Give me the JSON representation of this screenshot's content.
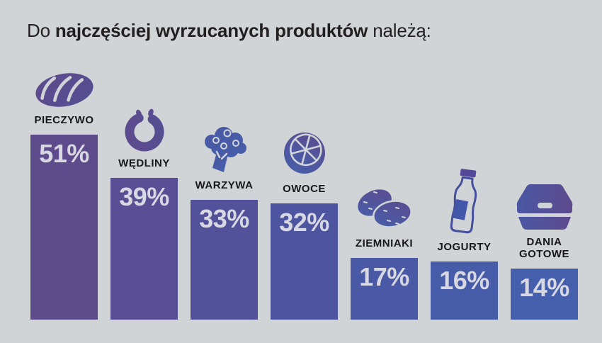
{
  "title_parts": {
    "lead": "Do ",
    "bold": "najczęściej wyrzucanych produktów",
    "tail": " należą:"
  },
  "chart_data": {
    "type": "bar",
    "title": "Do najczęściej wyrzucanych produktów należą:",
    "categories": [
      "PIECZYWO",
      "WĘDLINY",
      "WARZYWA",
      "OWOCE",
      "ZIEMNIAKI",
      "JOGURTY",
      "DANIA GOTOWE"
    ],
    "values": [
      51,
      39,
      33,
      32,
      17,
      16,
      14
    ],
    "unit": "%",
    "value_labels": [
      "51%",
      "39%",
      "33%",
      "32%",
      "17%",
      "16%",
      "14%"
    ],
    "bar_colors": [
      "#5e4b8c",
      "#594e93",
      "#53519a",
      "#4e55a0",
      "#4959a5",
      "#475ca9",
      "#455fac"
    ],
    "icons": [
      "bread-icon",
      "sausage-ring-icon",
      "broccoli-icon",
      "citrus-slice-icon",
      "potatoes-icon",
      "yogurt-bottle-icon",
      "food-container-icon"
    ],
    "ylim": [
      0,
      55
    ],
    "grid": false,
    "legend": "none",
    "bar_value_position": "inside-top",
    "icon_position": "above-bar"
  },
  "palette": {
    "background": "#d1d4d6",
    "title_text": "#231f20",
    "category_text": "#18171a",
    "value_text": "#d8d8e2",
    "purple": "#5e4a8d",
    "purple_deep": "#544e92",
    "blue": "#4560ac",
    "blue_mid": "#4a57a3",
    "bottle_outline": "#454f9d",
    "bottle_label": "#4257a9",
    "bottle_cap": "#54489a"
  }
}
